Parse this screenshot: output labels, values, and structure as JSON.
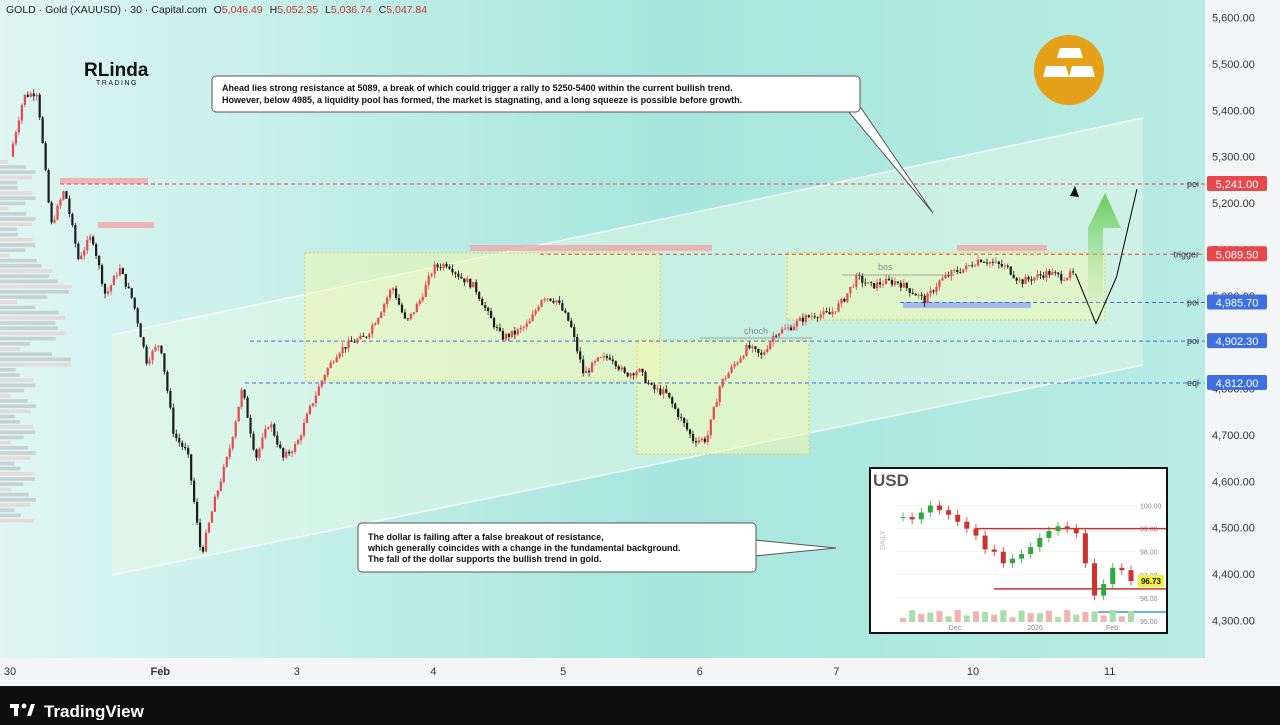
{
  "header": {
    "symbol": "GOLD · Gold (XAUUSD) · 30 · Capital.com",
    "o_label": "O",
    "o_value": "5,046.49",
    "h_label": "H",
    "h_value": "5,052.35",
    "l_label": "L",
    "l_value": "5,036.74",
    "c_label": "C",
    "c_value": "5,047.84"
  },
  "logo": {
    "text": "RLinda",
    "sub": "TRADING"
  },
  "annotations": {
    "top_note_line1": "Ahead lies strong resistance at 5089, a break of which could trigger a rally to 5250-5400 within the current bullish trend.",
    "top_note_line2": "However, below 4985, a liquidity pool has formed, the market is stagnating, and a long squeeze is possible before growth.",
    "bottom_note_line1": "The dollar is failing after a false breakout of resistance,",
    "bottom_note_line2": "which generally coincides with a change in the fundamental background.",
    "bottom_note_line3": "The fall of the dollar supports the bullish trend in gold.",
    "bos": "bos",
    "choch": "choch"
  },
  "levels": [
    {
      "name": "poi",
      "value": 5241.0,
      "display": "5,241.00",
      "color": "#e8474c"
    },
    {
      "name": "trigger",
      "value": 5089.5,
      "display": "5,089.50",
      "color": "#e8474c"
    },
    {
      "name": "poi",
      "value": 4985.7,
      "display": "4,985.70",
      "color": "#3d6fe0"
    },
    {
      "name": "poi",
      "value": 4902.3,
      "display": "4,902.30",
      "color": "#3d6fe0"
    },
    {
      "name": "eql",
      "value": 4812.0,
      "display": "4,812.00",
      "color": "#3d6fe0"
    }
  ],
  "chart_data": [
    {
      "type": "candlestick",
      "title": "GOLD · Gold (XAUUSD) · 30 · Capital.com",
      "ylim": [
        4200,
        5650
      ],
      "y_ticks": [
        "5,600.00",
        "5,500.00",
        "5,400.00",
        "5,300.00",
        "5,200.00",
        "5,100.00",
        "5,000.00",
        "4,900.00",
        "4,800.00",
        "4,700.00",
        "4,600.00",
        "4,500.00",
        "4,400.00",
        "4,300.00"
      ],
      "y_tick_values": [
        5600,
        5500,
        5400,
        5300,
        5200,
        5100,
        5000,
        4900,
        4800,
        4700,
        4600,
        4500,
        4400,
        4300
      ],
      "x_ticks": [
        "30",
        "Feb",
        "3",
        "4",
        "5",
        "6",
        "7",
        "10",
        "11"
      ],
      "x_tick_days": [
        0,
        1.1,
        2.1,
        3.1,
        4.05,
        5.05,
        6.05,
        7.05,
        8.05
      ],
      "series": [
        {
          "close_path": [
            [
              0.0,
              5300
            ],
            [
              0.1,
              5430
            ],
            [
              0.2,
              5440
            ],
            [
              0.3,
              5150
            ],
            [
              0.4,
              5230
            ],
            [
              0.5,
              5080
            ],
            [
              0.6,
              5130
            ],
            [
              0.7,
              5000
            ],
            [
              0.8,
              5060
            ],
            [
              0.9,
              4990
            ],
            [
              1.0,
              4860
            ],
            [
              1.1,
              4900
            ],
            [
              1.2,
              4700
            ],
            [
              1.3,
              4660
            ],
            [
              1.4,
              4440
            ],
            [
              1.5,
              4560
            ],
            [
              1.6,
              4660
            ],
            [
              1.7,
              4800
            ],
            [
              1.8,
              4650
            ],
            [
              1.9,
              4730
            ],
            [
              2.0,
              4650
            ],
            [
              2.1,
              4680
            ],
            [
              2.2,
              4760
            ],
            [
              2.3,
              4830
            ],
            [
              2.4,
              4880
            ],
            [
              2.5,
              4900
            ],
            [
              2.6,
              4910
            ],
            [
              2.7,
              4960
            ],
            [
              2.8,
              5020
            ],
            [
              2.9,
              4940
            ],
            [
              3.0,
              4990
            ],
            [
              3.1,
              5060
            ],
            [
              3.2,
              5070
            ],
            [
              3.3,
              5040
            ],
            [
              3.4,
              5020
            ],
            [
              3.5,
              4960
            ],
            [
              3.6,
              4910
            ],
            [
              3.7,
              4920
            ],
            [
              3.8,
              4940
            ],
            [
              3.9,
              5000
            ],
            [
              4.0,
              4990
            ],
            [
              4.1,
              4940
            ],
            [
              4.2,
              4830
            ],
            [
              4.3,
              4860
            ],
            [
              4.4,
              4870
            ],
            [
              4.5,
              4830
            ],
            [
              4.6,
              4840
            ],
            [
              4.7,
              4800
            ],
            [
              4.8,
              4790
            ],
            [
              4.9,
              4740
            ],
            [
              5.0,
              4690
            ],
            [
              5.1,
              4690
            ],
            [
              5.2,
              4810
            ],
            [
              5.3,
              4850
            ],
            [
              5.4,
              4890
            ],
            [
              5.5,
              4870
            ],
            [
              5.6,
              4920
            ],
            [
              5.7,
              4930
            ],
            [
              5.8,
              4950
            ],
            [
              5.9,
              4960
            ],
            [
              6.0,
              4960
            ],
            [
              6.1,
              4990
            ],
            [
              6.2,
              5040
            ],
            [
              6.3,
              5020
            ],
            [
              6.4,
              5030
            ],
            [
              6.5,
              5030
            ],
            [
              6.6,
              5010
            ],
            [
              6.7,
              4990
            ],
            [
              6.8,
              5030
            ],
            [
              6.9,
              5050
            ],
            [
              7.0,
              5060
            ],
            [
              7.1,
              5080
            ],
            [
              7.2,
              5070
            ],
            [
              7.3,
              5060
            ],
            [
              7.4,
              5030
            ],
            [
              7.5,
              5040
            ],
            [
              7.6,
              5050
            ],
            [
              7.7,
              5040
            ],
            [
              7.8,
              5047.84
            ]
          ]
        }
      ],
      "projection": [
        [
          7.8,
          5047.84
        ],
        [
          7.95,
          4940
        ],
        [
          8.1,
          5040
        ],
        [
          8.25,
          5230
        ]
      ]
    },
    {
      "type": "line",
      "title": "USD",
      "ylabel": "DAILY",
      "ylim": [
        95,
        100.5
      ],
      "y_ticks": [
        "100.00",
        "99.00",
        "98.00",
        "97.00",
        "96.00",
        "95.00"
      ],
      "y_tick_values": [
        100,
        99,
        98,
        97,
        96,
        95
      ],
      "x_ticks": [
        "Dec",
        "2026",
        "Feb"
      ],
      "last_value": "96.73",
      "resistance": 99.0,
      "support": 97.0,
      "series": [
        {
          "values": [
            99.5,
            99.4,
            99.7,
            100.0,
            99.8,
            99.6,
            99.3,
            99.0,
            98.7,
            98.1,
            98.0,
            97.5,
            97.7,
            97.9,
            98.2,
            98.6,
            98.9,
            99.1,
            99.0,
            98.8,
            97.5,
            96.1,
            96.6,
            97.3,
            97.2,
            96.73
          ]
        }
      ]
    }
  ]
}
